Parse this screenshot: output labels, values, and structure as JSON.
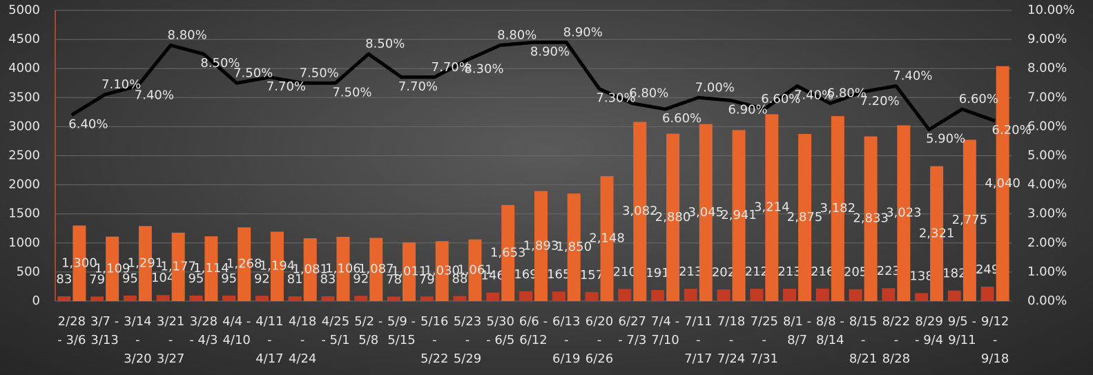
{
  "chart_data": {
    "type": "bar",
    "categories": [
      "2/28 - 3/6",
      "3/7 - 3/13",
      "3/14 - 3/20",
      "3/21 - 3/27",
      "3/28 - 4/3",
      "4/4 - 4/10",
      "4/11 - 4/17",
      "4/18 - 4/24",
      "4/25 - 5/1",
      "5/2 - 5/8",
      "5/9 - 5/15",
      "5/16 - 5/22",
      "5/23 - 5/29",
      "5/30 - 6/5",
      "6/6 - 6/12",
      "6/13 - 6/19",
      "6/20 - 6/26",
      "6/27 - 7/3",
      "7/4 - 7/10",
      "7/11 - 7/17",
      "7/18 - 7/24",
      "7/25 - 7/31",
      "8/1 - 8/7",
      "8/8 - 8/14",
      "8/15 - 8/21",
      "8/22 - 8/28",
      "8/29 - 9/4",
      "9/5 - 9/11",
      "9/12 - 9/18"
    ],
    "series": [
      {
        "type": "bar",
        "color": "#c23b22",
        "values": [
          83,
          79,
          95,
          104,
          95,
          95,
          92,
          81,
          83,
          92,
          78,
          79,
          88,
          146,
          169,
          165,
          157,
          210,
          191,
          213,
          202,
          212,
          213,
          216,
          205,
          223,
          138,
          182,
          249
        ]
      },
      {
        "type": "bar",
        "color": "#e8652b",
        "values": [
          1300,
          1109,
          1291,
          1177,
          1114,
          1268,
          1194,
          1081,
          1106,
          1087,
          1011,
          1030,
          1061,
          1653,
          1893,
          1850,
          2148,
          3082,
          2880,
          3045,
          2941,
          3214,
          2875,
          3182,
          2833,
          3023,
          2321,
          2775,
          4040
        ],
        "value_labels": [
          "1,300",
          "1,109",
          "1,291",
          "1,177",
          "1,114",
          "1,268",
          "1,194",
          "1,081",
          "1,106",
          "1,087",
          "1,011",
          "1,030",
          "1,061",
          "1,653",
          "1,893",
          "1,850",
          "2,148",
          "3,082",
          "2,880",
          "3,045",
          "2,941",
          "3,214",
          "2,875",
          "3,182",
          "2,833",
          "3,023",
          "2,321",
          "2,775",
          "4,040"
        ]
      },
      {
        "type": "line",
        "color": "#000000",
        "axis": "y2",
        "values": [
          6.4,
          7.1,
          7.4,
          8.8,
          8.5,
          7.5,
          7.7,
          7.5,
          7.5,
          8.5,
          7.7,
          7.7,
          8.3,
          8.8,
          8.9,
          8.9,
          7.3,
          6.8,
          6.6,
          7.0,
          6.9,
          6.6,
          7.4,
          6.8,
          7.2,
          7.4,
          5.9,
          6.6,
          6.2
        ],
        "value_labels": [
          "6.40%",
          "7.10%",
          "7.40%",
          "8.80%",
          "8.50%",
          "7.50%",
          "7.70%",
          "7.50%",
          "7.50%",
          "8.50%",
          "7.70%",
          "7.70%",
          "8.30%",
          "8.80%",
          "8.90%",
          "8.90%",
          "7.30%",
          "6.80%",
          "6.60%",
          "7.00%",
          "6.90%",
          "6.60%",
          "7.40%",
          "6.80%",
          "7.20%",
          "7.40%",
          "5.90%",
          "6.60%",
          "6.20%"
        ]
      }
    ],
    "ylim": [
      0,
      5000
    ],
    "yticks": [
      0,
      500,
      1000,
      1500,
      2000,
      2500,
      3000,
      3500,
      4000,
      4500,
      5000
    ],
    "y2lim": [
      0,
      10
    ],
    "y2ticks": [
      {
        "value": 0,
        "label": "0.00%"
      },
      {
        "value": 1,
        "label": "1.00%"
      },
      {
        "value": 2,
        "label": "2.00%"
      },
      {
        "value": 3,
        "label": "3.00%"
      },
      {
        "value": 4,
        "label": "4.00%"
      },
      {
        "value": 5,
        "label": "5.00%"
      },
      {
        "value": 6,
        "label": "6.00%"
      },
      {
        "value": 7,
        "label": "7.00%"
      },
      {
        "value": 8,
        "label": "8.00%"
      },
      {
        "value": 9,
        "label": "9.00%"
      },
      {
        "value": 10,
        "label": "10.00%"
      }
    ],
    "grid": true
  }
}
